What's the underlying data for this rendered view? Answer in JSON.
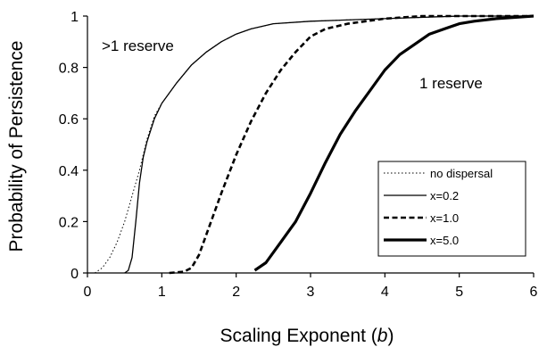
{
  "chart_data": {
    "type": "line",
    "xlabel": "Scaling Exponent (b)",
    "xlabel_parts": [
      "Scaling Exponent (",
      "b",
      ")"
    ],
    "ylabel": "Probability of Persistence",
    "xlim": [
      0,
      6
    ],
    "ylim": [
      0,
      1
    ],
    "xticks": [
      0,
      1,
      2,
      3,
      4,
      5,
      6
    ],
    "yticks": [
      0,
      0.2,
      0.4,
      0.6,
      0.8,
      1
    ],
    "ytick_labels": [
      "0",
      "0.2",
      "0.4",
      "0.6",
      "0.8",
      "1"
    ],
    "grid": false,
    "legend_position": "right",
    "annotations": [
      {
        "text": ">1 reserve",
        "x": 0.15,
        "y": 0.89
      },
      {
        "text": "1 reserve",
        "x": 4.7,
        "y": 0.73
      }
    ],
    "series": [
      {
        "name": "no dispersal",
        "style": "dotted",
        "points": [
          [
            0.1,
            0
          ],
          [
            0.2,
            0.02
          ],
          [
            0.3,
            0.06
          ],
          [
            0.4,
            0.12
          ],
          [
            0.5,
            0.2
          ],
          [
            0.6,
            0.3
          ],
          [
            0.7,
            0.4
          ],
          [
            0.8,
            0.52
          ],
          [
            0.9,
            0.61
          ],
          [
            1.0,
            0.66
          ],
          [
            1.2,
            0.74
          ],
          [
            1.4,
            0.81
          ],
          [
            1.6,
            0.86
          ],
          [
            1.8,
            0.9
          ],
          [
            2.0,
            0.93
          ],
          [
            2.2,
            0.95
          ],
          [
            2.5,
            0.97
          ],
          [
            3.0,
            0.98
          ],
          [
            4.0,
            0.99
          ],
          [
            5.0,
            1.0
          ],
          [
            6.0,
            1.0
          ]
        ]
      },
      {
        "name": "x=0.2",
        "style": "thin",
        "points": [
          [
            0.5,
            0
          ],
          [
            0.55,
            0.01
          ],
          [
            0.6,
            0.06
          ],
          [
            0.65,
            0.2
          ],
          [
            0.7,
            0.35
          ],
          [
            0.75,
            0.45
          ],
          [
            0.8,
            0.51
          ],
          [
            0.9,
            0.6
          ],
          [
            1.0,
            0.66
          ],
          [
            1.2,
            0.74
          ],
          [
            1.4,
            0.81
          ],
          [
            1.6,
            0.86
          ],
          [
            1.8,
            0.9
          ],
          [
            2.0,
            0.93
          ],
          [
            2.2,
            0.95
          ],
          [
            2.5,
            0.97
          ],
          [
            3.0,
            0.98
          ],
          [
            4.0,
            0.99
          ],
          [
            5.0,
            1.0
          ],
          [
            6.0,
            1.0
          ]
        ]
      },
      {
        "name": "x=1.0",
        "style": "dashed",
        "points": [
          [
            1.1,
            0
          ],
          [
            1.3,
            0.005
          ],
          [
            1.4,
            0.02
          ],
          [
            1.5,
            0.07
          ],
          [
            1.6,
            0.15
          ],
          [
            1.8,
            0.31
          ],
          [
            2.0,
            0.46
          ],
          [
            2.2,
            0.59
          ],
          [
            2.4,
            0.7
          ],
          [
            2.6,
            0.79
          ],
          [
            2.8,
            0.86
          ],
          [
            3.0,
            0.92
          ],
          [
            3.2,
            0.95
          ],
          [
            3.5,
            0.97
          ],
          [
            4.0,
            0.99
          ],
          [
            4.5,
            1.0
          ],
          [
            6.0,
            1.0
          ]
        ]
      },
      {
        "name": "x=5.0",
        "style": "thick",
        "points": [
          [
            2.25,
            0.01
          ],
          [
            2.4,
            0.04
          ],
          [
            2.6,
            0.12
          ],
          [
            2.8,
            0.2
          ],
          [
            3.0,
            0.31
          ],
          [
            3.2,
            0.43
          ],
          [
            3.4,
            0.54
          ],
          [
            3.6,
            0.63
          ],
          [
            3.8,
            0.71
          ],
          [
            4.0,
            0.79
          ],
          [
            4.2,
            0.85
          ],
          [
            4.4,
            0.89
          ],
          [
            4.6,
            0.93
          ],
          [
            4.8,
            0.95
          ],
          [
            5.0,
            0.97
          ],
          [
            5.2,
            0.98
          ],
          [
            5.5,
            0.99
          ],
          [
            6.0,
            1.0
          ]
        ]
      }
    ]
  }
}
